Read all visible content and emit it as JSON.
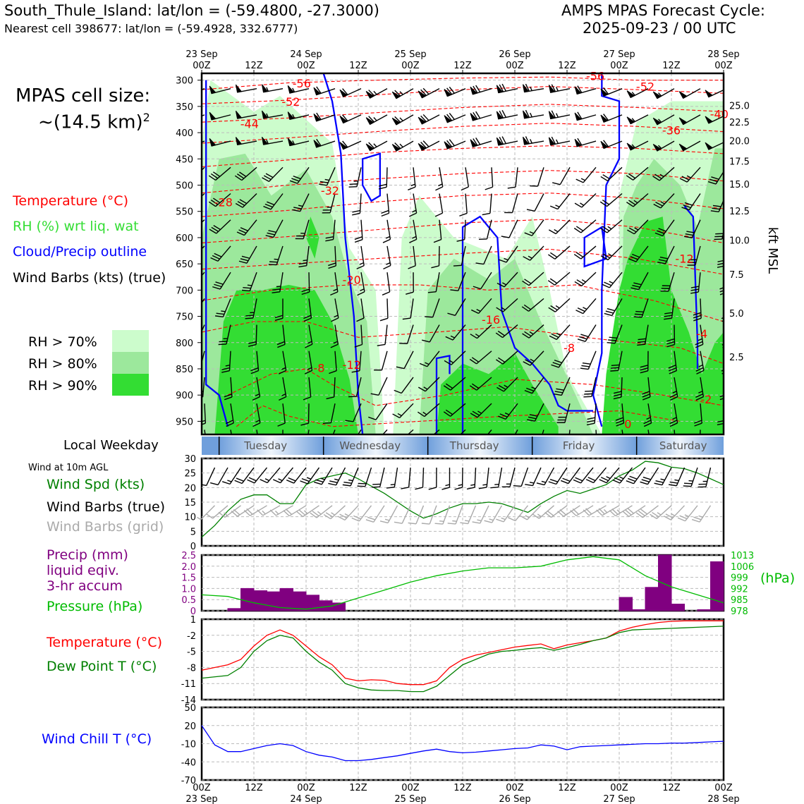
{
  "header": {
    "station_line": "South_Thule_Island: lat/lon = (-59.4800, -27.3000)",
    "cell_line": "Nearest cell 398677: lat/lon = (-59.4928, 332.6777)",
    "cycle_title": "AMPS MPAS Forecast Cycle:",
    "cycle_time": "2025-09-23 / 00 UTC"
  },
  "cell_size": {
    "line1": "MPAS cell size:",
    "line2": "~(14.5 km)",
    "sup": "2"
  },
  "legend": {
    "temperature": "Temperature (°C)",
    "rh": "RH (%) wrt liq. wat",
    "cloud": "Cloud/Precip outline",
    "wind_barbs": "Wind Barbs (kts) (true)",
    "rh70": "RH > 70%",
    "rh80": "RH > 80%",
    "rh90": "RH > 90%"
  },
  "time_axis": {
    "top_days": [
      "23 Sep",
      "24 Sep",
      "25 Sep",
      "26 Sep",
      "27 Sep",
      "28 Sep"
    ],
    "hour_labels": [
      "00Z",
      "12Z",
      "00Z",
      "12Z",
      "00Z",
      "12Z",
      "00Z",
      "12Z",
      "00Z",
      "12Z",
      "00Z"
    ],
    "bottom_days": [
      "23 Sep",
      "24 Sep",
      "25 Sep",
      "26 Sep",
      "27 Sep",
      "28 Sep"
    ]
  },
  "weekday_bar": {
    "label": "Local Weekday",
    "days": [
      "Tuesday",
      "Wednesday",
      "Thursday",
      "Friday",
      "Saturday"
    ]
  },
  "colors": {
    "temperature": "#ff0000",
    "rh": "#33dd33",
    "cloud": "#0000ff",
    "rh70": "#ccfccc",
    "rh80": "#9ce89c",
    "rh90": "#33dd33",
    "precip": "#800080",
    "pressure": "#00bb00",
    "dewpoint": "#008000",
    "windchill": "#0000ff",
    "wind_speed": "#008000",
    "barbs_grid": "#aaaaaa"
  },
  "panels": {
    "wind": {
      "title": "Wind at 10m AGL",
      "label_speed": "Wind Spd (kts)",
      "label_barbs_true": "Wind Barbs (true)",
      "label_barbs_grid": "Wind Barbs (grid)"
    },
    "precip": {
      "label1": "Precip (mm)",
      "label2": "liquid eqiv.",
      "label3": "3-hr accum",
      "label_pressure": "Pressure (hPa)",
      "unit_right": "(hPa)"
    },
    "temp": {
      "label_t": "Temperature (°C)",
      "label_td": "Dew Point T (°C)"
    },
    "chill": {
      "label": "Wind Chill T (°C)"
    }
  },
  "chart_data": [
    {
      "type": "heatmap",
      "panel": "cross-section",
      "ylabel_right": "kft MSL",
      "pressure_ticks": [
        300,
        350,
        400,
        450,
        500,
        550,
        600,
        650,
        700,
        750,
        800,
        850,
        900,
        950
      ],
      "kft_ticks": [
        "25.0",
        "22.5",
        "20.0",
        "17.5",
        "15.0",
        "12.5",
        "10.0",
        "7.5",
        "5.0",
        "2.5"
      ],
      "kft_ticks_hpa": [
        348,
        380,
        415,
        454,
        498,
        549,
        605,
        670,
        744,
        827
      ],
      "x_hours": [
        0,
        120
      ],
      "temperature_labels": [
        {
          "t": 23,
          "p": 306,
          "v": "-56"
        },
        {
          "t": 20.5,
          "p": 341,
          "v": "-52"
        },
        {
          "t": 11,
          "p": 383,
          "v": "-44"
        },
        {
          "t": 29.5,
          "p": 510,
          "v": "-32"
        },
        {
          "t": 5,
          "p": 532,
          "v": "-28"
        },
        {
          "t": 34.5,
          "p": 680,
          "v": "-20"
        },
        {
          "t": 66.5,
          "p": 756,
          "v": "-16"
        },
        {
          "t": 90.5,
          "p": 292,
          "v": "-56"
        },
        {
          "t": 102,
          "p": 312,
          "v": "-52"
        },
        {
          "t": 108,
          "p": 395,
          "v": "-36"
        },
        {
          "t": 119,
          "p": 364,
          "v": "-40"
        },
        {
          "t": 111,
          "p": 640,
          "v": "-12"
        },
        {
          "t": 115,
          "p": 783,
          "v": "-4"
        },
        {
          "t": 84.5,
          "p": 810,
          "v": "-8"
        },
        {
          "t": 27,
          "p": 848,
          "v": "-8"
        },
        {
          "t": 34.5,
          "p": 842,
          "v": "-12"
        },
        {
          "t": 98,
          "p": 955,
          "v": "0"
        },
        {
          "t": 116,
          "p": 908,
          "v": "-2"
        }
      ],
      "rh_levels": [
        70,
        80,
        90
      ]
    },
    {
      "type": "line",
      "panel": "wind",
      "ylim": [
        0,
        30
      ],
      "yticks": [
        0,
        5,
        10,
        15,
        20,
        25,
        30
      ],
      "x": [
        0,
        3,
        6,
        9,
        12,
        15,
        18,
        21,
        24,
        27,
        30,
        33,
        36,
        39,
        42,
        45,
        48,
        51,
        54,
        57,
        60,
        63,
        66,
        69,
        72,
        75,
        78,
        81,
        84,
        87,
        90,
        93,
        96,
        99,
        102,
        105,
        108,
        111,
        114,
        117,
        120
      ],
      "series": [
        {
          "name": "Wind Spd (kts)",
          "values": [
            3,
            7,
            12,
            16,
            17.5,
            17.5,
            14.5,
            14.5,
            21,
            23,
            24,
            25,
            23,
            20.5,
            18,
            15,
            12,
            9.5,
            11,
            13,
            14.5,
            14.5,
            15,
            14.5,
            13,
            11.5,
            14.5,
            17,
            19,
            18,
            19.5,
            21,
            24,
            26,
            29,
            28.5,
            27,
            26.5,
            25,
            23,
            21
          ]
        }
      ]
    },
    {
      "type": "bar",
      "panel": "precip",
      "ylim": [
        0,
        2.5
      ],
      "yticks": [
        0,
        0.5,
        1.0,
        1.5,
        2.0,
        2.5
      ],
      "right_ticks": [
        978,
        985,
        992,
        999,
        1006,
        1013
      ],
      "right_lim": [
        978,
        1013
      ],
      "bars": [
        {
          "x0": 6,
          "x1": 9,
          "v": 0.1
        },
        {
          "x0": 9,
          "x1": 12,
          "v": 1.0
        },
        {
          "x0": 12,
          "x1": 15,
          "v": 0.9
        },
        {
          "x0": 15,
          "x1": 18,
          "v": 0.85
        },
        {
          "x0": 18,
          "x1": 21,
          "v": 1.0
        },
        {
          "x0": 21,
          "x1": 24,
          "v": 0.85
        },
        {
          "x0": 24,
          "x1": 27,
          "v": 0.7
        },
        {
          "x0": 27,
          "x1": 30,
          "v": 0.45
        },
        {
          "x0": 30,
          "x1": 33,
          "v": 0.35
        },
        {
          "x0": 96,
          "x1": 99,
          "v": 0.6
        },
        {
          "x0": 99,
          "x1": 102,
          "v": 0.05
        },
        {
          "x0": 102,
          "x1": 105,
          "v": 1.05
        },
        {
          "x0": 105,
          "x1": 108,
          "v": 2.65
        },
        {
          "x0": 108,
          "x1": 111,
          "v": 0.3
        },
        {
          "x0": 114,
          "x1": 117,
          "v": 0.05
        },
        {
          "x0": 117,
          "x1": 120,
          "v": 2.2
        }
      ],
      "pressure": {
        "name": "Pressure (hPa)",
        "x": [
          0,
          6,
          12,
          18,
          24,
          30,
          36,
          42,
          48,
          54,
          60,
          66,
          72,
          78,
          84,
          90,
          96,
          102,
          108,
          114,
          120
        ],
        "values": [
          988,
          987,
          983,
          980,
          979,
          981,
          986,
          991,
          996,
          1000,
          1003,
          1005,
          1005,
          1006,
          1010,
          1012,
          1010,
          1000,
          993,
          988,
          983
        ]
      }
    },
    {
      "type": "line",
      "panel": "temperature",
      "ylim": [
        -14,
        1
      ],
      "yticks": [
        -14,
        -11,
        -8,
        -5,
        -2,
        1
      ],
      "x": [
        0,
        6,
        9,
        12,
        15,
        18,
        21,
        24,
        27,
        30,
        33,
        36,
        39,
        42,
        45,
        48,
        51,
        54,
        57,
        60,
        63,
        66,
        69,
        72,
        75,
        78,
        81,
        84,
        87,
        90,
        93,
        96,
        99,
        102,
        105,
        108,
        111,
        114,
        117,
        120
      ],
      "series": [
        {
          "name": "Temperature (°C)",
          "values": [
            -8.5,
            -7.5,
            -6.5,
            -4,
            -2,
            -1,
            -2,
            -4,
            -6,
            -7.5,
            -10,
            -10.5,
            -10.3,
            -10.4,
            -11,
            -11.2,
            -11.2,
            -10.5,
            -8,
            -6.5,
            -5.7,
            -5.2,
            -4.7,
            -4.2,
            -3.9,
            -3.6,
            -4.5,
            -3.8,
            -3.4,
            -3,
            -2.5,
            -1.2,
            -0.5,
            0,
            0.4,
            0.6,
            0.7,
            0.7,
            0.7,
            0.7
          ]
        },
        {
          "name": "Dew Point T (°C)",
          "values": [
            -10,
            -9.5,
            -8,
            -5,
            -3,
            -2,
            -2.5,
            -5,
            -7,
            -8.5,
            -11,
            -11.8,
            -12.2,
            -12.3,
            -12.3,
            -12.5,
            -12.5,
            -11.5,
            -9.5,
            -7.5,
            -6.5,
            -5.5,
            -5,
            -4.8,
            -4.5,
            -4.3,
            -4.8,
            -4.3,
            -3.7,
            -3,
            -2.5,
            -1.5,
            -1.0,
            -0.9,
            -0.8,
            -0.7,
            -0.6,
            -0.5,
            -0.4,
            -0.3
          ]
        }
      ]
    },
    {
      "type": "line",
      "panel": "windchill",
      "ylim": [
        -70,
        50
      ],
      "yticks": [
        -70,
        -40,
        -10,
        20,
        50
      ],
      "x": [
        0,
        3,
        6,
        9,
        12,
        15,
        18,
        21,
        24,
        27,
        30,
        33,
        36,
        39,
        42,
        45,
        48,
        51,
        54,
        57,
        60,
        63,
        66,
        69,
        72,
        75,
        78,
        81,
        84,
        87,
        90,
        93,
        96,
        99,
        102,
        105,
        108,
        111,
        114,
        117,
        120
      ],
      "series": [
        {
          "name": "Wind Chill T (°C)",
          "values": [
            20,
            -12,
            -23,
            -23,
            -18,
            -13,
            -10,
            -13,
            -23,
            -29,
            -32,
            -38,
            -38,
            -36,
            -33,
            -30,
            -26,
            -22,
            -19,
            -23,
            -25,
            -24,
            -22,
            -20,
            -18,
            -17,
            -12,
            -14,
            -20,
            -15,
            -14,
            -13,
            -12,
            -11,
            -10,
            -10,
            -9,
            -9,
            -8,
            -7,
            -6
          ]
        }
      ]
    }
  ]
}
